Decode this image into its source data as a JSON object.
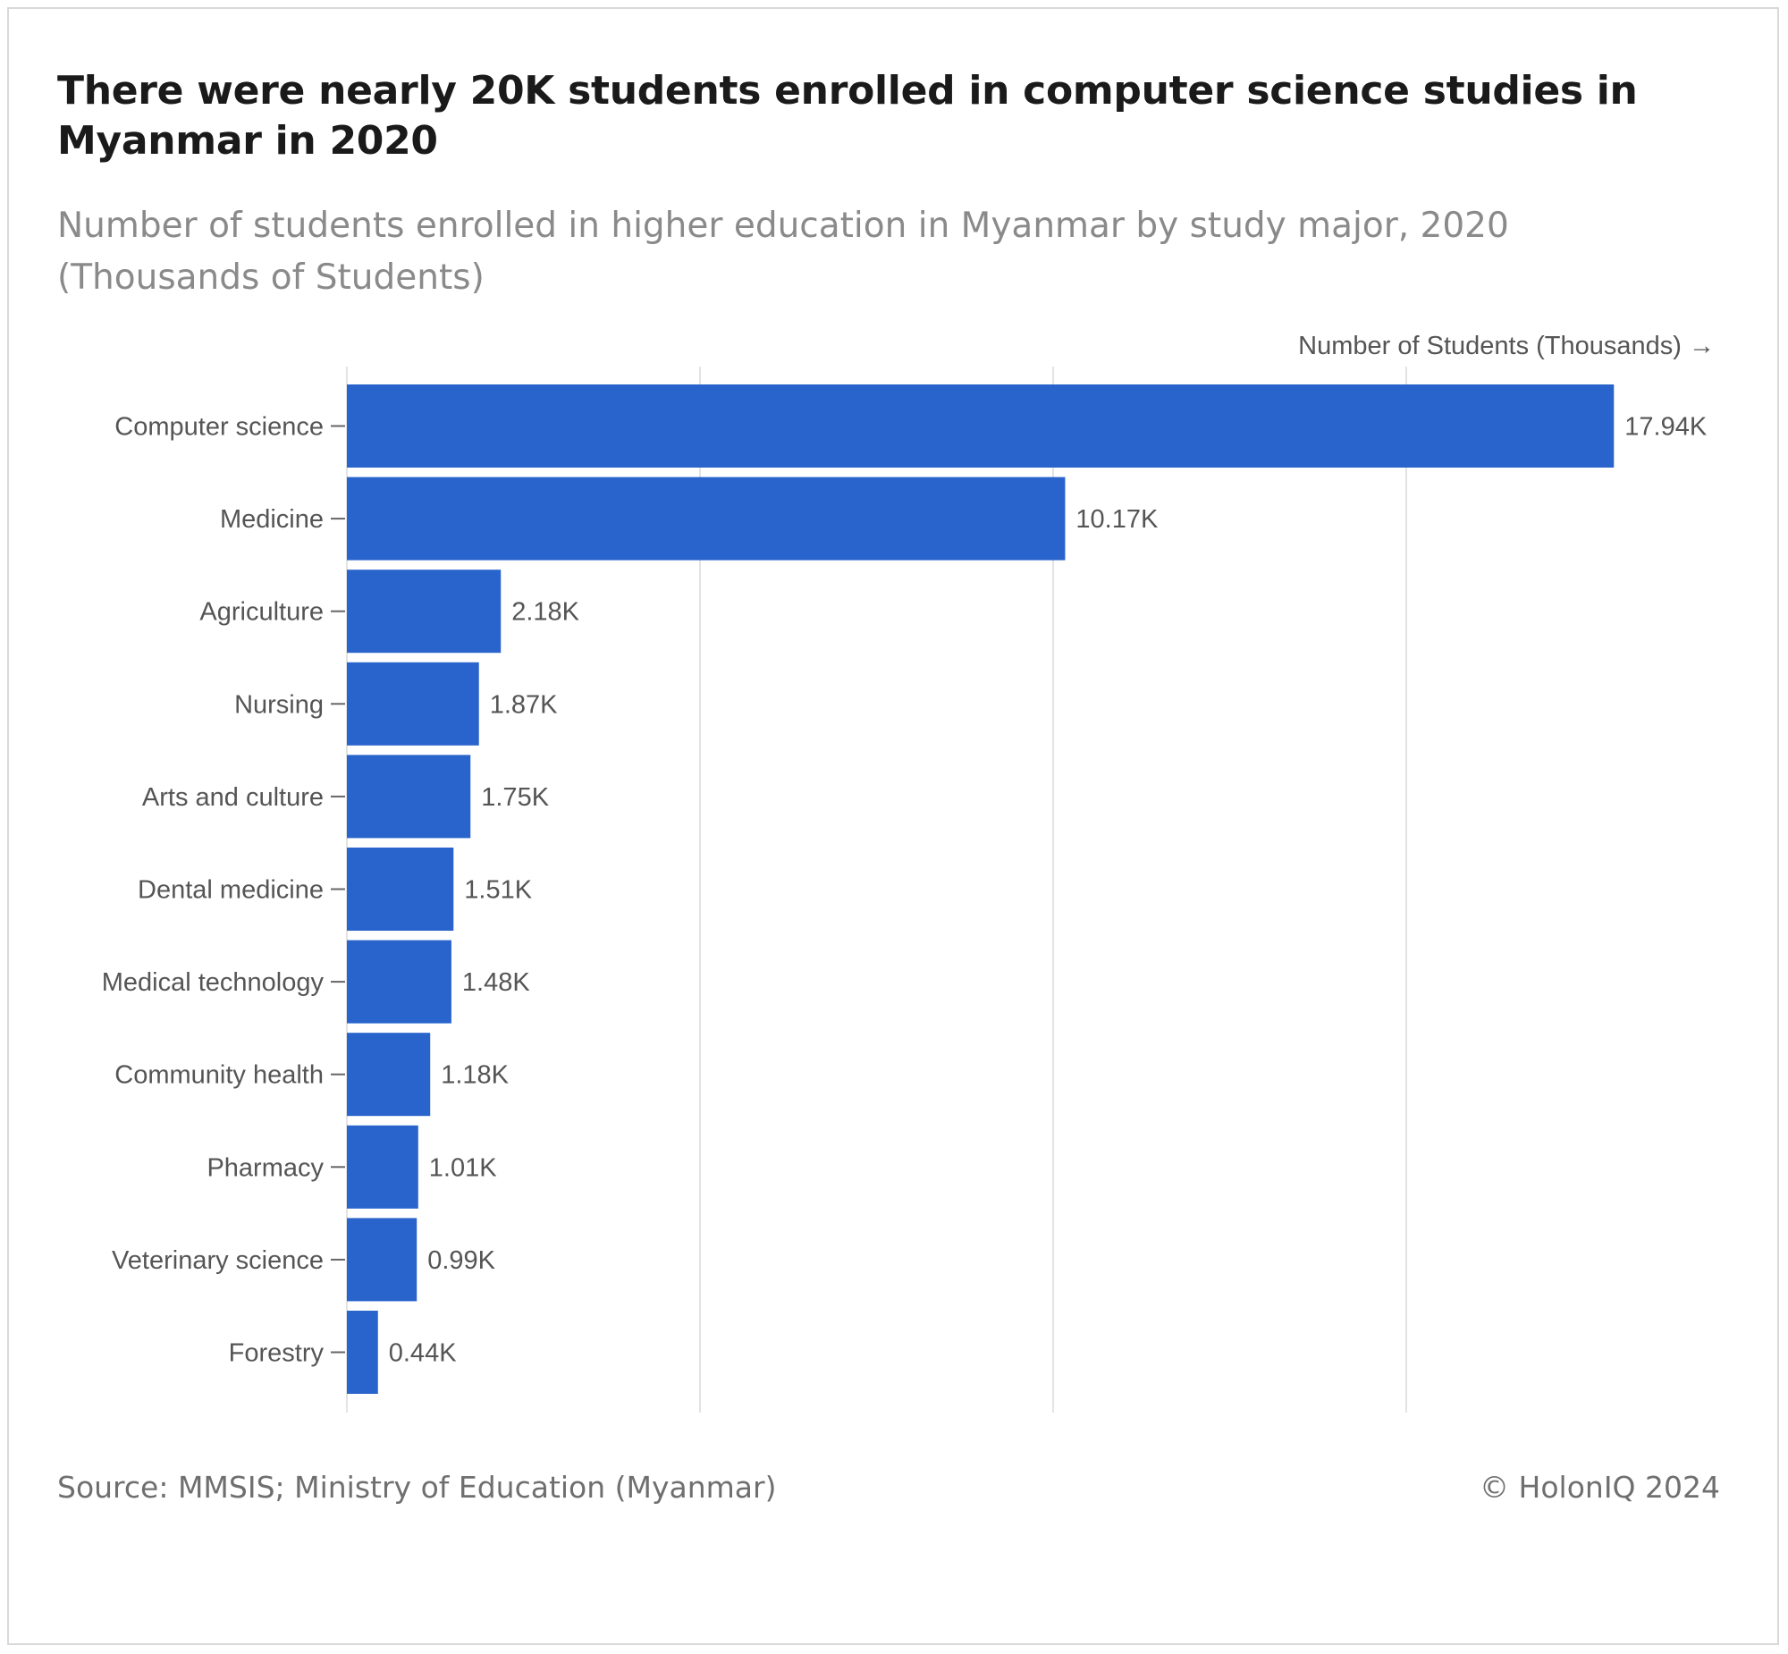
{
  "title": "There were nearly 20K students enrolled in computer science studies in Myanmar in 2020",
  "subtitle": "Number of students enrolled in higher education in Myanmar by study major, 2020 (Thousands of Students)",
  "source": "Source: MMSIS; Ministry of Education (Myanmar)",
  "copyright": "© HolonIQ 2024",
  "colors": {
    "bar": "#2963cc",
    "grid": "#e3e3e3",
    "axis": "#666666"
  },
  "chart_data": {
    "type": "bar",
    "orientation": "horizontal",
    "xlabel": "Number of Students (Thousands) →",
    "ylabel": "",
    "xlim": [
      0,
      20
    ],
    "grid": true,
    "categories": [
      "Computer science",
      "Medicine",
      "Agriculture",
      "Nursing",
      "Arts and culture",
      "Dental medicine",
      "Medical technology",
      "Community health",
      "Pharmacy",
      "Veterinary science",
      "Forestry"
    ],
    "values": [
      17.94,
      10.17,
      2.18,
      1.87,
      1.75,
      1.51,
      1.48,
      1.18,
      1.01,
      0.99,
      0.44
    ],
    "data_labels": [
      "17.94K",
      "10.17K",
      "2.18K",
      "1.87K",
      "1.75K",
      "1.51K",
      "1.48K",
      "1.18K",
      "1.01K",
      "0.99K",
      "0.44K"
    ]
  }
}
